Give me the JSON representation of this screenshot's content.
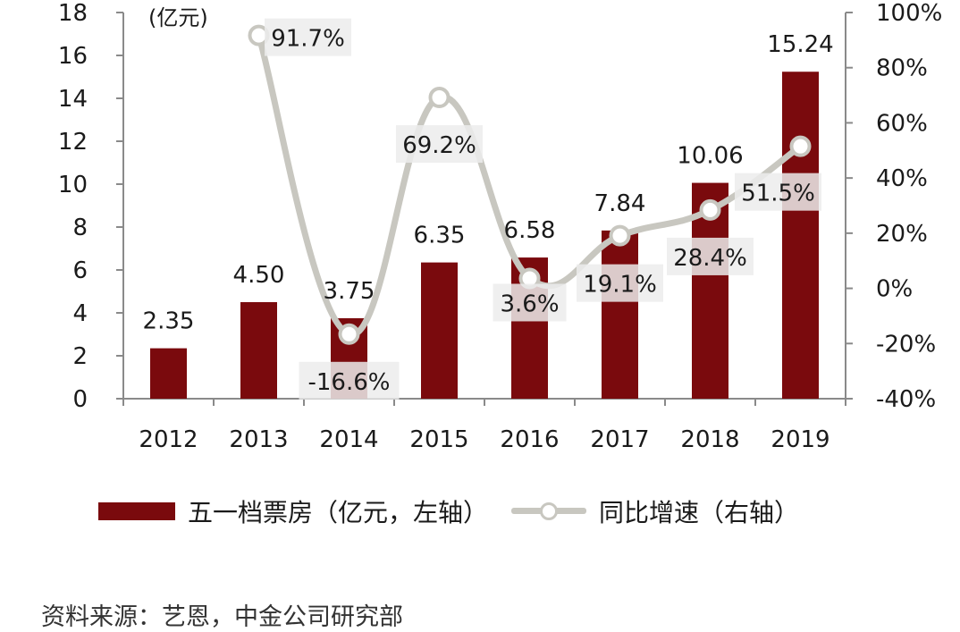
{
  "chart_data": {
    "type": "bar+line",
    "categories": [
      "2012",
      "2013",
      "2014",
      "2015",
      "2016",
      "2017",
      "2018",
      "2019"
    ],
    "series": [
      {
        "name": "五一档票房（亿元，左轴）",
        "type": "bar",
        "axis": "left",
        "values": [
          2.35,
          4.5,
          3.75,
          6.35,
          6.58,
          7.84,
          10.06,
          15.24
        ],
        "labels": [
          "2.35",
          "4.50",
          "3.75",
          "6.35",
          "6.58",
          "7.84",
          "10.06",
          "15.24"
        ]
      },
      {
        "name": "同比增速（右轴）",
        "type": "line",
        "axis": "right",
        "values": [
          null,
          91.7,
          -16.6,
          69.2,
          3.6,
          19.1,
          28.4,
          51.5
        ],
        "labels": [
          "",
          "91.7%",
          "-16.6%",
          "69.2%",
          "3.6%",
          "19.1%",
          "28.4%",
          "51.5%"
        ]
      }
    ],
    "left_axis": {
      "unit": "(亿元)",
      "ylim": [
        0,
        18
      ],
      "ticks": [
        "0",
        "2",
        "4",
        "6",
        "8",
        "10",
        "12",
        "14",
        "16",
        "18"
      ]
    },
    "right_axis": {
      "ylim": [
        -40,
        100
      ],
      "ticks": [
        "-40%",
        "-20%",
        "0%",
        "20%",
        "40%",
        "60%",
        "80%",
        "100%"
      ]
    },
    "legend_position": "bottom",
    "grid": false,
    "colors": {
      "bar": "#7a0a0d",
      "line": "#c8c7c0",
      "label_box": "#ececec"
    }
  },
  "legend": {
    "bar_label": "五一档票房（亿元，左轴）",
    "line_label": "同比增速（右轴）"
  },
  "source": "资料来源：艺恩，中金公司研究部"
}
